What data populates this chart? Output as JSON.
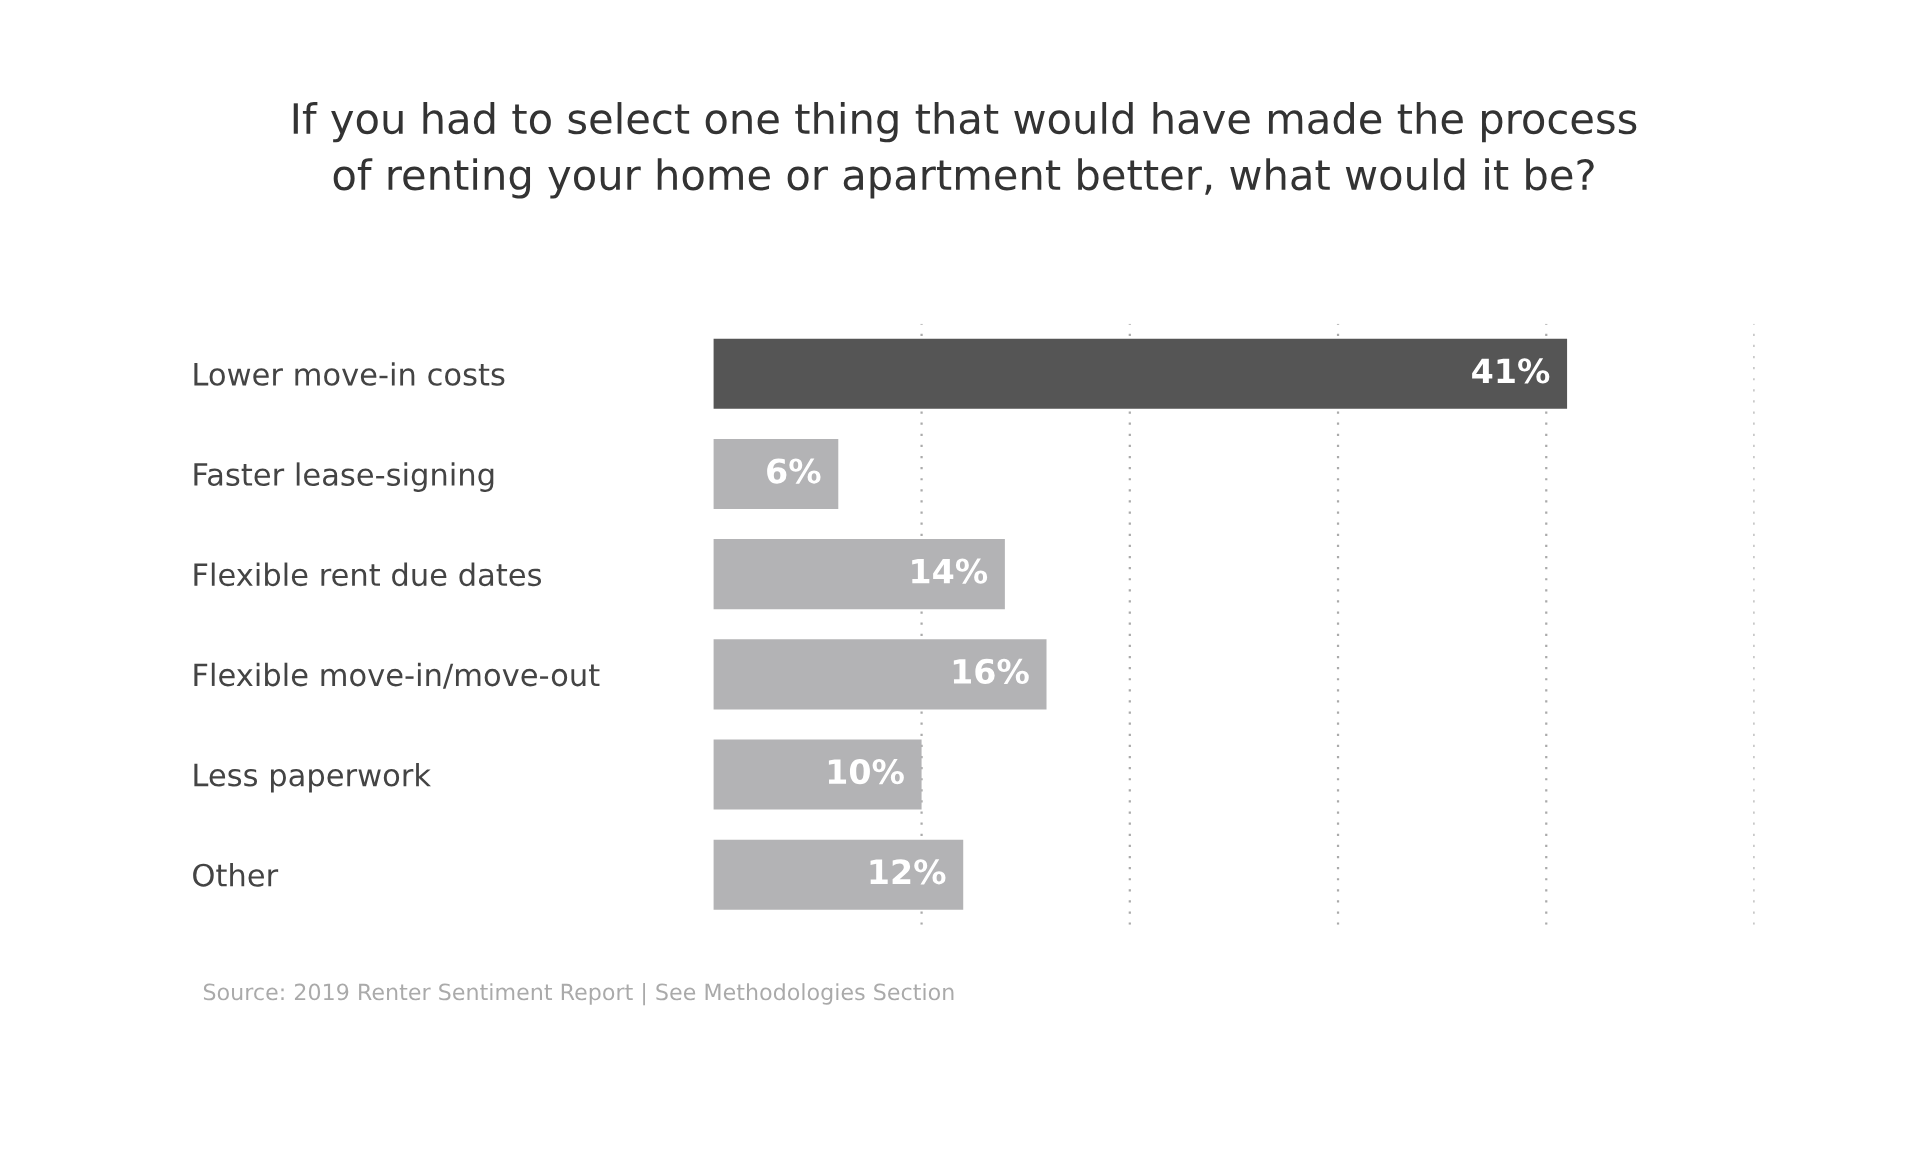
{
  "chart_data": {
    "type": "bar",
    "orientation": "horizontal",
    "title": "If you had to select one thing that would have made the process\nof renting your home or apartment better, what would it be?",
    "categories": [
      "Lower move-in costs",
      "Faster lease-signing",
      "Flexible rent due dates",
      "Flexible move-in/move-out",
      "Less paperwork",
      "Other"
    ],
    "values": [
      41,
      6,
      14,
      16,
      10,
      12
    ],
    "colors": [
      "#555555",
      "#b3b3b5",
      "#b3b3b5",
      "#b3b3b5",
      "#b3b3b5",
      "#b3b3b5"
    ],
    "value_labels": [
      "41%",
      "6%",
      "14%",
      "16%",
      "10%",
      "12%"
    ],
    "xlim": [
      0,
      50
    ],
    "xticks": [
      {
        "value": 10,
        "label": null
      },
      {
        "value": 20,
        "label": null
      },
      {
        "value": 30,
        "label": null
      },
      {
        "value": 40,
        "label": null
      },
      {
        "value": 50,
        "label": null
      }
    ],
    "tick_labels": "y",
    "grid": "x",
    "annotations": [
      "Source: 2019 Renter Sentiment Report | See Methodologies Section"
    ]
  }
}
